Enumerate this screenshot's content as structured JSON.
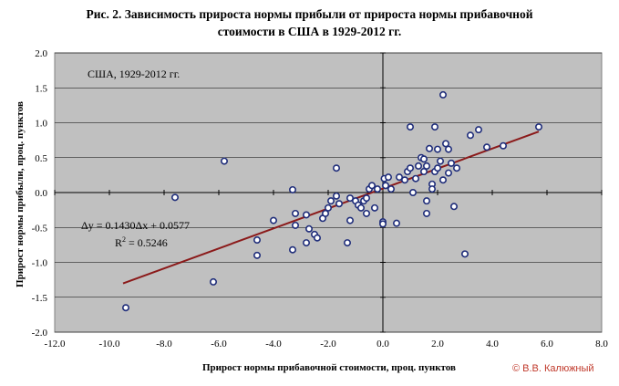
{
  "chart_data": {
    "type": "scatter",
    "title_line1": "Рис. 2. Зависимость прироста нормы прибыли от прироста нормы прибавочной",
    "title_line2": "стоимости в США в 1929-2012 гг.",
    "xlabel": "Прирост нормы прибавочной стоимости, проц. пунктов",
    "ylabel": "Прирост нормы прибыли, проц. пунктов",
    "inner_label": "США, 1929-2012 гг.",
    "equation": "Δy = 0.1430Δx + 0.0577",
    "r2_label": "R",
    "r2_sup": "2",
    "r2_value": " = 0.5246",
    "xlim": [
      -12,
      8
    ],
    "ylim": [
      -2,
      2
    ],
    "xticks": [
      -12,
      -10,
      -8,
      -6,
      -4,
      -2,
      0,
      2,
      4,
      6,
      8
    ],
    "yticks": [
      -2,
      -1.5,
      -1,
      -0.5,
      0,
      0.5,
      1,
      1.5,
      2
    ],
    "xtick_labels": [
      "-12.0",
      "-10.0",
      "-8.0",
      "-6.0",
      "-4.0",
      "-2.0",
      "0.0",
      "2.0",
      "4.0",
      "6.0",
      "8.0"
    ],
    "ytick_labels": [
      "-2.0",
      "-1.5",
      "-1.0",
      "-0.5",
      "0.0",
      "0.5",
      "1.0",
      "1.5",
      "2.0"
    ],
    "grid": true,
    "trendline": {
      "slope": 0.143,
      "intercept": 0.0577,
      "x_range": [
        -9.5,
        5.7
      ],
      "color": "#8b1a1a"
    },
    "plot_background": "#c0c0c0",
    "marker_color": "#1f2d7a",
    "points": [
      [
        -9.4,
        -1.65
      ],
      [
        -7.6,
        -0.07
      ],
      [
        -6.2,
        -1.28
      ],
      [
        -5.8,
        0.45
      ],
      [
        -4.6,
        -0.68
      ],
      [
        -4.6,
        -0.9
      ],
      [
        -4.0,
        -0.4
      ],
      [
        -3.3,
        0.04
      ],
      [
        -3.3,
        -0.82
      ],
      [
        -3.2,
        -0.3
      ],
      [
        -3.2,
        -0.47
      ],
      [
        -2.8,
        -0.32
      ],
      [
        -2.8,
        -0.72
      ],
      [
        -2.7,
        -0.52
      ],
      [
        -2.5,
        -0.6
      ],
      [
        -2.4,
        -0.65
      ],
      [
        -2.2,
        -0.37
      ],
      [
        -2.1,
        -0.3
      ],
      [
        -2.0,
        -0.22
      ],
      [
        -1.9,
        -0.12
      ],
      [
        -1.7,
        0.35
      ],
      [
        -1.7,
        -0.05
      ],
      [
        -1.6,
        -0.16
      ],
      [
        -1.3,
        -0.72
      ],
      [
        -1.2,
        -0.4
      ],
      [
        -1.2,
        -0.08
      ],
      [
        -1.0,
        -0.12
      ],
      [
        -0.9,
        -0.18
      ],
      [
        -0.8,
        -0.22
      ],
      [
        -0.7,
        -0.12
      ],
      [
        -0.6,
        -0.08
      ],
      [
        -0.6,
        -0.3
      ],
      [
        -0.5,
        0.05
      ],
      [
        -0.4,
        0.1
      ],
      [
        -0.3,
        -0.22
      ],
      [
        -0.2,
        0.05
      ],
      [
        0.0,
        -0.42
      ],
      [
        0.0,
        -0.45
      ],
      [
        0.05,
        0.2
      ],
      [
        0.1,
        0.1
      ],
      [
        0.2,
        0.22
      ],
      [
        0.3,
        0.05
      ],
      [
        0.5,
        -0.44
      ],
      [
        0.6,
        0.22
      ],
      [
        0.8,
        0.18
      ],
      [
        0.9,
        0.3
      ],
      [
        1.0,
        0.94
      ],
      [
        1.0,
        0.35
      ],
      [
        1.1,
        0.0
      ],
      [
        1.2,
        0.2
      ],
      [
        1.3,
        0.38
      ],
      [
        1.4,
        0.5
      ],
      [
        1.5,
        0.48
      ],
      [
        1.5,
        0.3
      ],
      [
        1.6,
        -0.3
      ],
      [
        1.6,
        -0.12
      ],
      [
        1.6,
        0.38
      ],
      [
        1.7,
        0.63
      ],
      [
        1.8,
        0.12
      ],
      [
        1.8,
        0.05
      ],
      [
        1.9,
        0.94
      ],
      [
        1.9,
        0.3
      ],
      [
        2.0,
        0.62
      ],
      [
        2.0,
        0.35
      ],
      [
        2.1,
        0.45
      ],
      [
        2.2,
        1.4
      ],
      [
        2.2,
        0.18
      ],
      [
        2.3,
        0.7
      ],
      [
        2.4,
        0.62
      ],
      [
        2.4,
        0.28
      ],
      [
        2.5,
        0.42
      ],
      [
        2.6,
        -0.2
      ],
      [
        2.7,
        0.35
      ],
      [
        3.0,
        -0.88
      ],
      [
        3.2,
        0.82
      ],
      [
        3.5,
        0.9
      ],
      [
        3.8,
        0.65
      ],
      [
        4.4,
        0.67
      ],
      [
        5.7,
        0.94
      ]
    ],
    "copyright": "© В.В. Калюжный"
  }
}
